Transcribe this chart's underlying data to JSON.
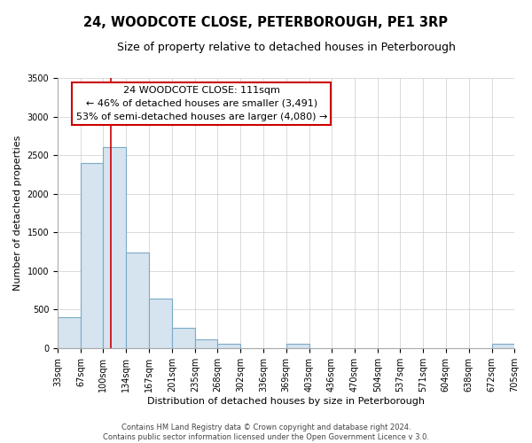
{
  "title": "24, WOODCOTE CLOSE, PETERBOROUGH, PE1 3RP",
  "subtitle": "Size of property relative to detached houses in Peterborough",
  "xlabel": "Distribution of detached houses by size in Peterborough",
  "ylabel": "Number of detached properties",
  "bin_edges": [
    33,
    67,
    100,
    134,
    167,
    201,
    235,
    268,
    302,
    336,
    369,
    403,
    436,
    470,
    504,
    537,
    571,
    604,
    638,
    672,
    705
  ],
  "bin_heights": [
    400,
    2400,
    2610,
    1240,
    640,
    260,
    110,
    60,
    0,
    0,
    60,
    0,
    0,
    0,
    0,
    0,
    0,
    0,
    0,
    50
  ],
  "bar_color": "#d6e4f0",
  "bar_edge_color": "#7aaac8",
  "vline_x": 111,
  "vline_color": "#cc0000",
  "annotation_text": "24 WOODCOTE CLOSE: 111sqm\n← 46% of detached houses are smaller (3,491)\n53% of semi-detached houses are larger (4,080) →",
  "annotation_box_facecolor": "#ffffff",
  "annotation_box_edgecolor": "#cc0000",
  "ylim": [
    0,
    3500
  ],
  "yticks": [
    0,
    500,
    1000,
    1500,
    2000,
    2500,
    3000,
    3500
  ],
  "background_color": "#ffffff",
  "plot_background_color": "#ffffff",
  "grid_color": "#cccccc",
  "footer_line1": "Contains HM Land Registry data © Crown copyright and database right 2024.",
  "footer_line2": "Contains public sector information licensed under the Open Government Licence v 3.0.",
  "title_fontsize": 10.5,
  "subtitle_fontsize": 9,
  "xlabel_fontsize": 8,
  "ylabel_fontsize": 8,
  "tick_label_fontsize": 7,
  "annotation_fontsize": 8,
  "footer_fontsize": 6
}
